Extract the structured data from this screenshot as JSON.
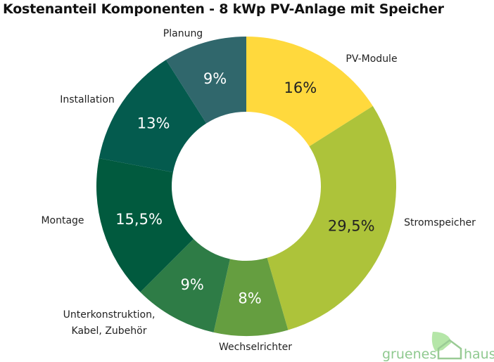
{
  "chart_data": {
    "type": "pie",
    "donut": true,
    "title": "Kostenanteil Komponenten - 8 kWp PV-Anlage mit Speicher",
    "slices": [
      {
        "label": "PV-Module",
        "value": 16,
        "value_label": "16%",
        "color": "#FFD93D",
        "text_color": "#222222"
      },
      {
        "label": "Stromspeicher",
        "value": 29.5,
        "value_label": "29,5%",
        "color": "#ADC33A",
        "text_color": "#222222"
      },
      {
        "label": "Wechselrichter",
        "value": 8,
        "value_label": "8%",
        "color": "#659E40",
        "text_color": "#ffffff"
      },
      {
        "label": "Unterkonstruktion, Kabel, Zubehör",
        "label_lines": [
          "Unterkonstruktion,",
          "Kabel, Zubehör"
        ],
        "value": 9,
        "value_label": "9%",
        "color": "#2E7C46",
        "text_color": "#ffffff"
      },
      {
        "label": "Montage",
        "value": 15.5,
        "value_label": "15,5%",
        "color": "#015A3E",
        "text_color": "#ffffff"
      },
      {
        "label": "Installation",
        "value": 13,
        "value_label": "13%",
        "color": "#045B4E",
        "text_color": "#ffffff"
      },
      {
        "label": "Planung",
        "value": 9,
        "value_label": "9%",
        "color": "#30676C",
        "text_color": "#ffffff"
      }
    ],
    "start_angle": "12 o'clock",
    "direction": "clockwise",
    "legend": "none"
  },
  "logo": {
    "text_left": "gruenes",
    "text_right": "haus",
    "color": "#8FC98F",
    "leaf_color": "#B5E6A8"
  }
}
